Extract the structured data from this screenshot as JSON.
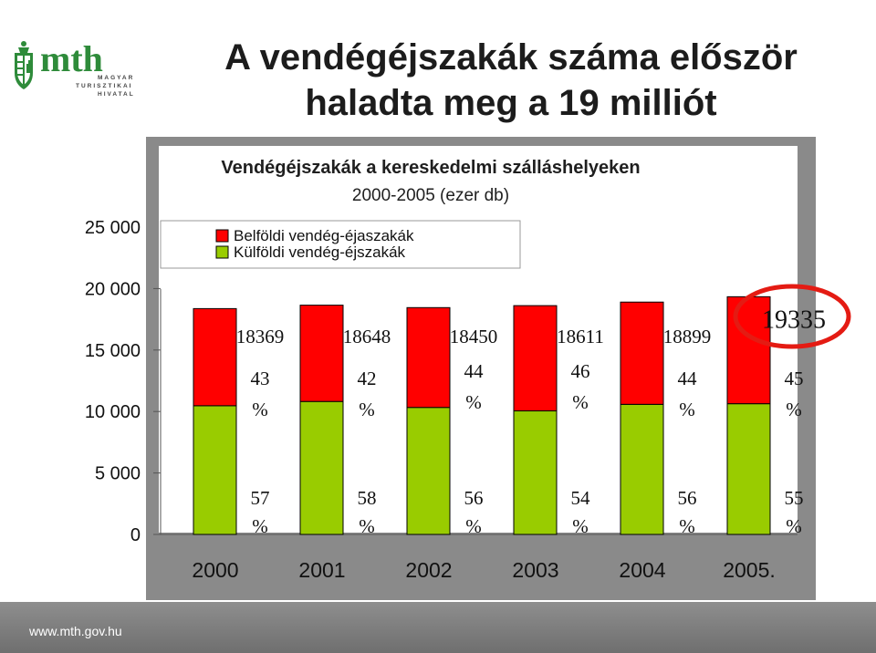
{
  "slide": {
    "title_line1": "A vendégéjszakák száma először",
    "title_line2": "haladta meg a 19 milliót",
    "footer_url": "www.mth.gov.hu"
  },
  "logo": {
    "brand": "mth",
    "line1": "MAGYAR",
    "line2": "TURISZTIKAI",
    "line3": "HIVATAL"
  },
  "colors": {
    "domestic": "#ff0000",
    "foreign": "#99cc00",
    "plot_bg": "#ffffff",
    "frame_bg": "#8a8a8a",
    "highlight_ring": "#e41b13"
  },
  "chart_data": {
    "type": "bar",
    "stacked": true,
    "title_line1": "Vendégéjszakák a kereskedelmi szálláshelyeken",
    "title_line2": "2000-2005 (ezer db)",
    "categories": [
      "2000",
      "2001",
      "2002",
      "2003",
      "2004",
      "2005."
    ],
    "totals": [
      "18369",
      "18648",
      "18450",
      "18611",
      "18899",
      "19335"
    ],
    "series": [
      {
        "name": "Külföldi vendég-éjszakák",
        "values": [
          10470,
          10816,
          10332,
          10050,
          10583,
          10634
        ],
        "pct_labels": [
          "57",
          "58",
          "56",
          "54",
          "56",
          "55"
        ]
      },
      {
        "name": "Belföldi vendég-éjaszakák",
        "values": [
          7899,
          7832,
          8118,
          8561,
          8316,
          8701
        ],
        "pct_labels": [
          "43",
          "42",
          "44",
          "46",
          "44",
          "45"
        ]
      }
    ],
    "pct_symbol": "%",
    "y_ticks": [
      "25 000",
      "20 000",
      "15 000",
      "10 000",
      "5 000",
      "0"
    ],
    "ylim": [
      0,
      25000
    ],
    "legend_position": "top",
    "highlight": "2005."
  }
}
